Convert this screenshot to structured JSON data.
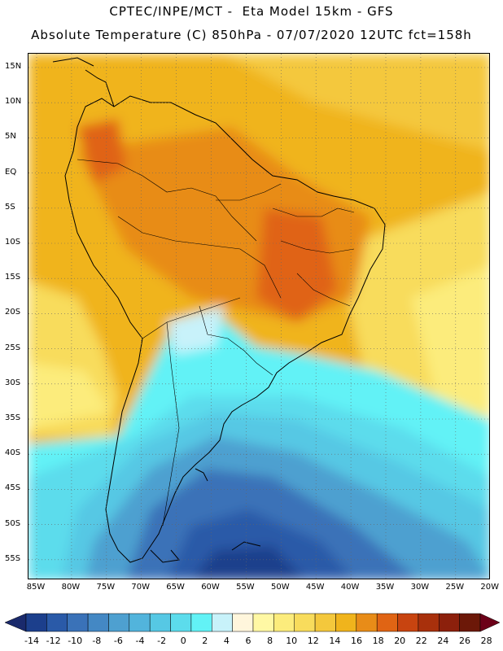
{
  "header": {
    "line1": "CPTEC/INPE/MCT -  Eta Model 15km - GFS",
    "line2": "Absolute Temperature (C) 850hPa - 07/07/2020 12UTC fct=158h"
  },
  "map": {
    "lat_labels": [
      "15N",
      "10N",
      "5N",
      "EQ",
      "5S",
      "10S",
      "15S",
      "20S",
      "25S",
      "30S",
      "35S",
      "40S",
      "45S",
      "50S",
      "55S"
    ],
    "lon_labels": [
      "85W",
      "80W",
      "75W",
      "70W",
      "65W",
      "60W",
      "55W",
      "50W",
      "45W",
      "40W",
      "35W",
      "30W",
      "25W",
      "20W"
    ]
  },
  "legend": {
    "labels": [
      "-14",
      "-12",
      "-10",
      "-8",
      "-6",
      "-4",
      "-2",
      "0",
      "2",
      "4",
      "6",
      "8",
      "10",
      "12",
      "14",
      "16",
      "18",
      "20",
      "22",
      "24",
      "26",
      "28"
    ],
    "colors": [
      "#1c3f8c",
      "#2a5aa8",
      "#3a72b8",
      "#4488c4",
      "#4ea0d0",
      "#52b4dc",
      "#56c8e4",
      "#5cdcec",
      "#62f2f6",
      "#c8f2fa",
      "#fff6dc",
      "#fff8a4",
      "#fcec7c",
      "#f8dc5c",
      "#f4c83c",
      "#f0b41c",
      "#e88c18",
      "#e06414",
      "#c84410",
      "#a8300c",
      "#8c200c",
      "#6c1808"
    ],
    "under_color": "#1a2a6c",
    "over_color": "#6c0018"
  }
}
